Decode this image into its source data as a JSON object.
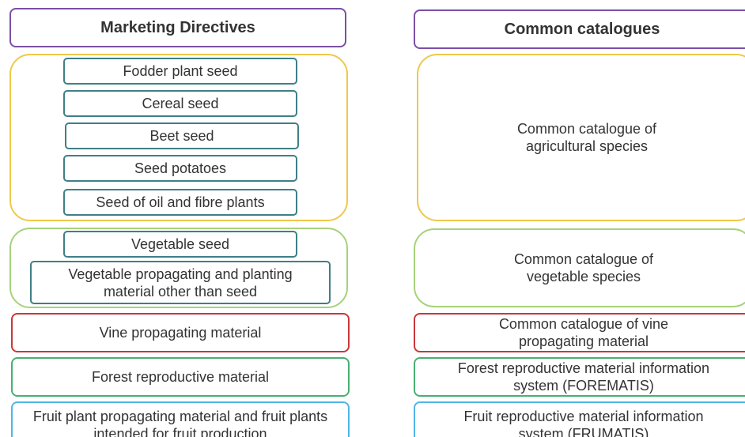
{
  "left": {
    "title": "Marketing Directives",
    "groups": [
      {
        "items": [
          "Fodder plant seed",
          "Cereal seed",
          "Beet seed",
          "Seed potatoes",
          "Seed of oil and fibre plants"
        ]
      },
      {
        "items": [
          "Vegetable seed",
          "Vegetable propagating and planting material other than seed"
        ]
      },
      {
        "label": "Vine propagating material"
      },
      {
        "label": "Forest reproductive material"
      },
      {
        "label": "Fruit plant propagating material and fruit plants intended for fruit production"
      }
    ]
  },
  "right": {
    "title": "Common catalogues",
    "items": [
      "Common catalogue of agricultural species",
      "Common catalogue of vegetable species",
      "Common catalogue of vine propagating material",
      "Forest reproductive material information system (FOREMATIS)",
      "Fruit reproductive material information system (FRUMATIS)"
    ]
  }
}
